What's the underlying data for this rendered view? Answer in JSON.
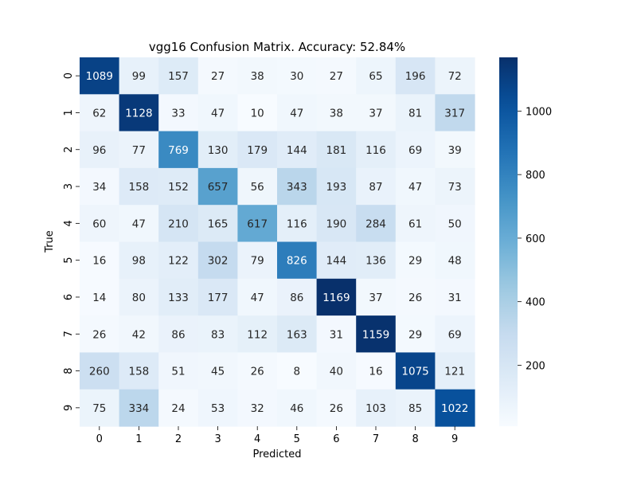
{
  "chart_data": {
    "type": "heatmap",
    "title": "vgg16 Confusion Matrix. Accuracy: 52.84%",
    "xlabel": "Predicted",
    "ylabel": "True",
    "x_categories": [
      "0",
      "1",
      "2",
      "3",
      "4",
      "5",
      "6",
      "7",
      "8",
      "9"
    ],
    "y_categories": [
      "0",
      "1",
      "2",
      "3",
      "4",
      "5",
      "6",
      "7",
      "8",
      "9"
    ],
    "values": [
      [
        1089,
        99,
        157,
        27,
        38,
        30,
        27,
        65,
        196,
        72
      ],
      [
        62,
        1128,
        33,
        47,
        10,
        47,
        38,
        37,
        81,
        317
      ],
      [
        96,
        77,
        769,
        130,
        179,
        144,
        181,
        116,
        69,
        39
      ],
      [
        34,
        158,
        152,
        657,
        56,
        343,
        193,
        87,
        47,
        73
      ],
      [
        60,
        47,
        210,
        165,
        617,
        116,
        190,
        284,
        61,
        50
      ],
      [
        16,
        98,
        122,
        302,
        79,
        826,
        144,
        136,
        29,
        48
      ],
      [
        14,
        80,
        133,
        177,
        47,
        86,
        1169,
        37,
        26,
        31
      ],
      [
        26,
        42,
        86,
        83,
        112,
        163,
        31,
        1159,
        29,
        69
      ],
      [
        260,
        158,
        51,
        45,
        26,
        8,
        40,
        16,
        1075,
        121
      ],
      [
        75,
        334,
        24,
        53,
        32,
        46,
        26,
        103,
        85,
        1022
      ]
    ],
    "colorbar": {
      "ticks": [
        200,
        400,
        600,
        800,
        1000
      ],
      "min": 8,
      "max": 1169,
      "colormap": "Blues"
    }
  }
}
